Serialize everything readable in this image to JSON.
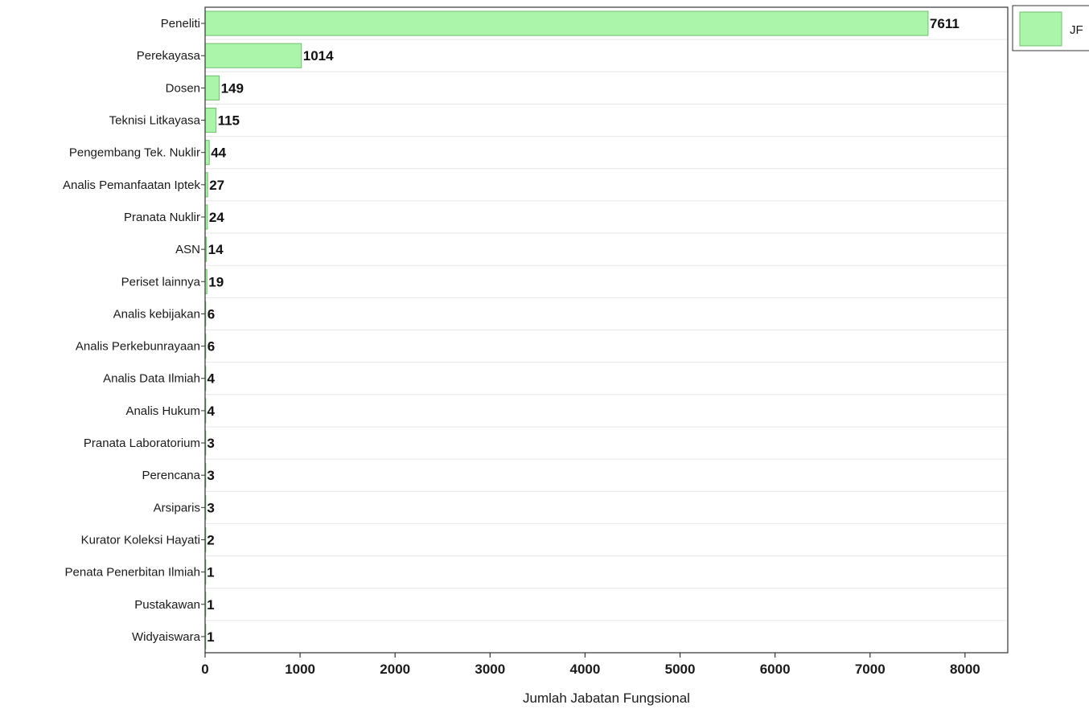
{
  "chart_data": {
    "type": "bar",
    "orientation": "horizontal",
    "categories": [
      "Peneliti",
      "Perekayasa",
      "Dosen",
      "Teknisi Litkayasa",
      "Pengembang Tek. Nuklir",
      "Analis Pemanfaatan Iptek",
      "Pranata Nuklir",
      "ASN",
      "Periset lainnya",
      "Analis kebijakan",
      "Analis Perkebunrayaan",
      "Analis Data Ilmiah",
      "Analis Hukum",
      "Pranata Laboratorium",
      "Perencana",
      "Arsiparis",
      "Kurator Koleksi Hayati",
      "Penata Penerbitan Ilmiah",
      "Pustakawan",
      "Widyaiswara"
    ],
    "series": [
      {
        "name": "JF",
        "values": [
          7611,
          1014,
          149,
          115,
          44,
          27,
          24,
          14,
          19,
          6,
          6,
          4,
          4,
          3,
          3,
          3,
          2,
          1,
          1,
          1
        ]
      }
    ],
    "value_labels": [
      "7611",
      "1014",
      "149",
      "115",
      "44",
      "27",
      "24",
      "14",
      "19",
      "6",
      "6",
      "4",
      "4",
      "3",
      "3",
      "3",
      "2",
      "1",
      "1",
      "1"
    ],
    "xlabel": "Jumlah Jabatan Fungsional",
    "ylabel": "",
    "xlim": [
      0,
      8450
    ],
    "xticks": [
      0,
      1000,
      2000,
      3000,
      4000,
      5000,
      6000,
      7000,
      8000
    ],
    "xtick_labels": [
      "0",
      "1000",
      "2000",
      "3000",
      "4000",
      "5000",
      "6000",
      "7000",
      "8000"
    ],
    "grid": "horizontal",
    "legend": {
      "position": "top-right, outside plot",
      "label": "JF"
    },
    "colors": {
      "bar": "#aaf5aa",
      "bar_edge": "#6fbf6f",
      "grid": "#e6e6e6",
      "axis": "#333333"
    }
  }
}
